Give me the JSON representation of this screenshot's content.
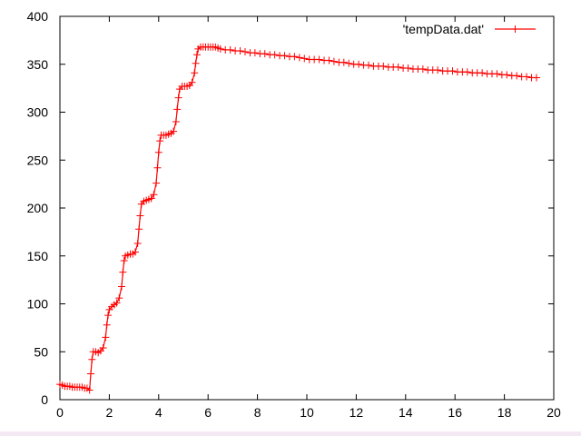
{
  "chart_data": {
    "type": "line",
    "title": "",
    "xlabel": "",
    "ylabel": "",
    "xlim": [
      0,
      20
    ],
    "ylim": [
      0,
      400
    ],
    "x_ticks": [
      0,
      2,
      4,
      6,
      8,
      10,
      12,
      14,
      16,
      18,
      20
    ],
    "y_ticks": [
      0,
      50,
      100,
      150,
      200,
      250,
      300,
      350,
      400
    ],
    "grid": false,
    "legend_position": "top-right",
    "series": [
      {
        "name": "'tempData.dat'",
        "color": "#ff0000",
        "marker": "plus",
        "points": [
          [
            0.0,
            16
          ],
          [
            0.1,
            15
          ],
          [
            0.2,
            14
          ],
          [
            0.3,
            14
          ],
          [
            0.4,
            14
          ],
          [
            0.5,
            13
          ],
          [
            0.6,
            13
          ],
          [
            0.7,
            13
          ],
          [
            0.8,
            13
          ],
          [
            0.9,
            13
          ],
          [
            1.0,
            12
          ],
          [
            1.1,
            12
          ],
          [
            1.2,
            10
          ],
          [
            1.25,
            27
          ],
          [
            1.3,
            42
          ],
          [
            1.35,
            50
          ],
          [
            1.45,
            50
          ],
          [
            1.55,
            49
          ],
          [
            1.65,
            51
          ],
          [
            1.75,
            54
          ],
          [
            1.85,
            65
          ],
          [
            1.9,
            78
          ],
          [
            1.95,
            88
          ],
          [
            2.0,
            94
          ],
          [
            2.1,
            97
          ],
          [
            2.2,
            99
          ],
          [
            2.3,
            101
          ],
          [
            2.4,
            106
          ],
          [
            2.5,
            118
          ],
          [
            2.55,
            133
          ],
          [
            2.6,
            145
          ],
          [
            2.65,
            150
          ],
          [
            2.75,
            151
          ],
          [
            2.85,
            152
          ],
          [
            2.95,
            152
          ],
          [
            3.05,
            154
          ],
          [
            3.15,
            163
          ],
          [
            3.2,
            178
          ],
          [
            3.25,
            192
          ],
          [
            3.3,
            204
          ],
          [
            3.4,
            207
          ],
          [
            3.5,
            208
          ],
          [
            3.6,
            209
          ],
          [
            3.7,
            210
          ],
          [
            3.8,
            214
          ],
          [
            3.9,
            226
          ],
          [
            3.95,
            242
          ],
          [
            4.0,
            258
          ],
          [
            4.05,
            270
          ],
          [
            4.1,
            276
          ],
          [
            4.2,
            276
          ],
          [
            4.3,
            276
          ],
          [
            4.4,
            277
          ],
          [
            4.5,
            278
          ],
          [
            4.6,
            280
          ],
          [
            4.7,
            290
          ],
          [
            4.75,
            303
          ],
          [
            4.8,
            315
          ],
          [
            4.85,
            324
          ],
          [
            4.95,
            327
          ],
          [
            5.05,
            327
          ],
          [
            5.15,
            327
          ],
          [
            5.25,
            328
          ],
          [
            5.35,
            331
          ],
          [
            5.45,
            341
          ],
          [
            5.5,
            351
          ],
          [
            5.55,
            360
          ],
          [
            5.6,
            366
          ],
          [
            5.7,
            368
          ],
          [
            5.8,
            368
          ],
          [
            5.9,
            368
          ],
          [
            6.0,
            368
          ],
          [
            6.1,
            368
          ],
          [
            6.2,
            368
          ],
          [
            6.3,
            368
          ],
          [
            6.4,
            367
          ],
          [
            6.5,
            366
          ],
          [
            6.7,
            365
          ],
          [
            6.9,
            365
          ],
          [
            7.1,
            364
          ],
          [
            7.3,
            364
          ],
          [
            7.5,
            363
          ],
          [
            7.7,
            362
          ],
          [
            7.9,
            362
          ],
          [
            8.1,
            361
          ],
          [
            8.3,
            361
          ],
          [
            8.5,
            360
          ],
          [
            8.7,
            360
          ],
          [
            8.9,
            359
          ],
          [
            9.1,
            359
          ],
          [
            9.3,
            358
          ],
          [
            9.5,
            358
          ],
          [
            9.7,
            357
          ],
          [
            9.9,
            356
          ],
          [
            10.1,
            355
          ],
          [
            10.3,
            355
          ],
          [
            10.5,
            355
          ],
          [
            10.7,
            354
          ],
          [
            10.9,
            354
          ],
          [
            11.1,
            353
          ],
          [
            11.3,
            352
          ],
          [
            11.5,
            352
          ],
          [
            11.7,
            351
          ],
          [
            11.9,
            350
          ],
          [
            12.1,
            350
          ],
          [
            12.3,
            349
          ],
          [
            12.5,
            349
          ],
          [
            12.7,
            348
          ],
          [
            12.9,
            348
          ],
          [
            13.1,
            348
          ],
          [
            13.3,
            347
          ],
          [
            13.5,
            347
          ],
          [
            13.7,
            347
          ],
          [
            13.9,
            346
          ],
          [
            14.1,
            346
          ],
          [
            14.3,
            345
          ],
          [
            14.5,
            345
          ],
          [
            14.7,
            345
          ],
          [
            14.9,
            344
          ],
          [
            15.1,
            344
          ],
          [
            15.3,
            344
          ],
          [
            15.5,
            343
          ],
          [
            15.7,
            343
          ],
          [
            15.9,
            343
          ],
          [
            16.1,
            342
          ],
          [
            16.3,
            342
          ],
          [
            16.5,
            342
          ],
          [
            16.7,
            341
          ],
          [
            16.9,
            341
          ],
          [
            17.1,
            341
          ],
          [
            17.3,
            340
          ],
          [
            17.5,
            340
          ],
          [
            17.7,
            340
          ],
          [
            17.9,
            339
          ],
          [
            18.1,
            339
          ],
          [
            18.3,
            338
          ],
          [
            18.5,
            338
          ],
          [
            18.7,
            337
          ],
          [
            18.9,
            337
          ],
          [
            19.1,
            336
          ],
          [
            19.3,
            336
          ]
        ]
      }
    ]
  }
}
